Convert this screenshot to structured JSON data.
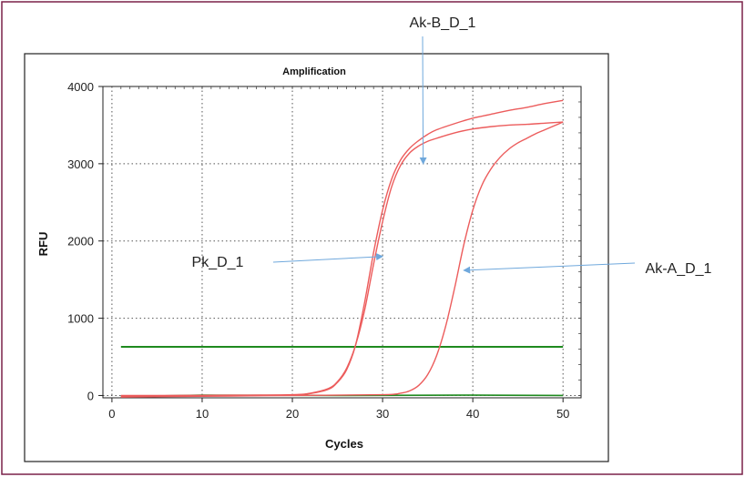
{
  "chart_data": {
    "type": "line",
    "title": "Amplification",
    "xlabel": "Cycles",
    "ylabel": "RFU",
    "xlim": [
      -1,
      52
    ],
    "ylim": [
      -30,
      4000
    ],
    "xticks": [
      0,
      10,
      20,
      30,
      40,
      50
    ],
    "yticks": [
      0,
      1000,
      2000,
      3000,
      4000
    ],
    "grid": true,
    "threshold": {
      "value": 630,
      "color": "#1f8a1f"
    },
    "baseline": {
      "value": 0,
      "color": "#1f8a1f"
    },
    "series": [
      {
        "name": "Ak-B_D_1",
        "color": "#ec5c5c",
        "x": [
          1,
          5,
          10,
          15,
          20,
          22,
          24,
          25,
          26,
          27,
          28,
          29,
          30,
          31,
          32,
          33,
          34,
          35,
          36,
          38,
          40,
          42,
          44,
          46,
          48,
          50
        ],
        "y": [
          0,
          0,
          2,
          5,
          10,
          30,
          90,
          180,
          350,
          650,
          1100,
          1700,
          2250,
          2700,
          2980,
          3140,
          3230,
          3290,
          3330,
          3400,
          3450,
          3480,
          3500,
          3510,
          3525,
          3540
        ]
      },
      {
        "name": "Pk_D_1",
        "color": "#ec5c5c",
        "x": [
          1,
          5,
          10,
          15,
          20,
          22,
          24,
          25,
          26,
          27,
          28,
          29,
          30,
          31,
          32,
          33,
          34,
          35,
          36,
          38,
          40,
          42,
          44,
          46,
          48,
          50
        ],
        "y": [
          -15,
          -10,
          -5,
          0,
          5,
          25,
          80,
          170,
          330,
          650,
          1200,
          1850,
          2400,
          2800,
          3050,
          3200,
          3300,
          3380,
          3440,
          3520,
          3590,
          3640,
          3690,
          3730,
          3780,
          3820
        ]
      },
      {
        "name": "Ak-A_D_1",
        "color": "#ec5c5c",
        "x": [
          1,
          10,
          20,
          30,
          32,
          33,
          34,
          35,
          36,
          37,
          38,
          39,
          40,
          41,
          42,
          43,
          44,
          45,
          46,
          47,
          48,
          49,
          50
        ],
        "y": [
          -20,
          -10,
          0,
          10,
          30,
          60,
          130,
          270,
          520,
          900,
          1400,
          1950,
          2400,
          2720,
          2930,
          3080,
          3190,
          3270,
          3330,
          3390,
          3440,
          3490,
          3540
        ]
      }
    ],
    "annotations": [
      {
        "label": "Ak-B_D_1",
        "point": [
          34.5,
          3000
        ]
      },
      {
        "label": "Pk_D_1",
        "point": [
          30,
          1800
        ]
      },
      {
        "label": "Ak-A_D_1",
        "point": [
          39,
          1620
        ]
      }
    ]
  }
}
